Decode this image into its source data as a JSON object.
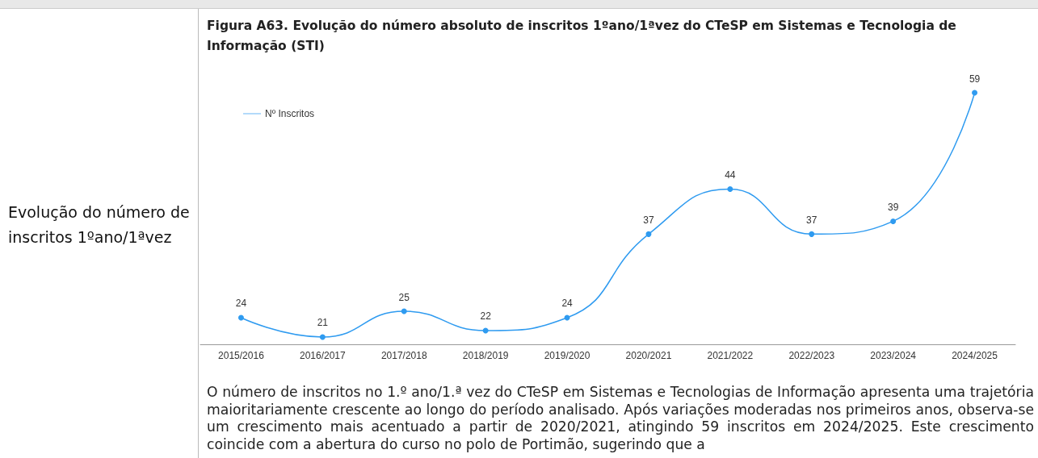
{
  "chart_data": {
    "type": "line",
    "title": "Figura A63. Evolução do número absoluto de inscritos 1ºano/1ªvez do CTeSP em Sistemas e Tecnologia de Informação (STI)",
    "categories": [
      "2015/2016",
      "2016/2017",
      "2017/2018",
      "2018/2019",
      "2019/2020",
      "2020/2021",
      "2021/2022",
      "2022/2023",
      "2023/2024",
      "2024/2025"
    ],
    "series": [
      {
        "name": "Nº Inscritos",
        "color": "#2f9bf0",
        "values": [
          24,
          21,
          25,
          22,
          24,
          37,
          44,
          37,
          39,
          59
        ]
      }
    ],
    "data_labels": true,
    "legend": "top left",
    "marker": "circle",
    "grid": false,
    "annotations": [
      "Evolução do número de inscritos 1ºano/1ªvez",
      "O número de inscritos no 1.º ano/1.ª vez do CTeSP em Sistemas e Tecnologias de Informação apresenta uma trajetória maioritariamente crescente ao longo do período analisado. Após variações moderadas nos primeiros anos, observa-se um crescimento mais acentuado a partir de 2020/2021, atingindo 59 inscritos em 2024/2025. Este crescimento coincide com a abertura do curso no polo de Portimão, sugerindo que a"
    ]
  }
}
